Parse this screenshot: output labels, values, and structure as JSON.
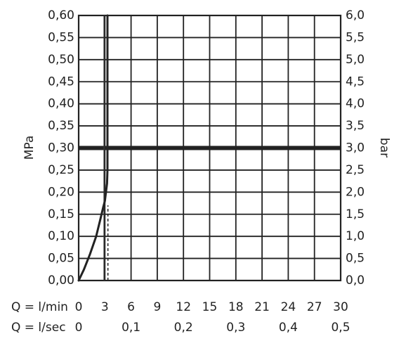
{
  "chart_data": {
    "type": "line",
    "ylabel_left": "MPa",
    "ylabel_right": "bar",
    "xlabel_lmin": "Q = l/min",
    "xlabel_lsec": "Q = l/sec",
    "x_ticks_lmin": [
      "0",
      "3",
      "6",
      "9",
      "12",
      "15",
      "18",
      "21",
      "24",
      "27",
      "30"
    ],
    "x_ticks_lsec": [
      {
        "value": 0,
        "label": "0"
      },
      {
        "value": 6,
        "label": "0,1"
      },
      {
        "value": 12,
        "label": "0,2"
      },
      {
        "value": 18,
        "label": "0,3"
      },
      {
        "value": 24,
        "label": "0,4"
      },
      {
        "value": 30,
        "label": "0,5"
      }
    ],
    "y_ticks_left": [
      "0,00",
      "0,05",
      "0,10",
      "0,15",
      "0,20",
      "0,25",
      "0,30",
      "0,35",
      "0,40",
      "0,45",
      "0,50",
      "0,55",
      "0,60"
    ],
    "y_ticks_right": [
      "0,0",
      "0,5",
      "1,0",
      "1,5",
      "2,0",
      "2,5",
      "3,0",
      "3,5",
      "4,0",
      "4,5",
      "5,0",
      "5,5",
      "6,0"
    ],
    "xlim": [
      0,
      30
    ],
    "ylim": [
      0,
      0.6
    ],
    "grid": true,
    "reference_line_y": 0.3,
    "curve": {
      "x": [
        0,
        0.6,
        1.3,
        2.0,
        2.5,
        2.8,
        3.0,
        3.25,
        3.3,
        3.3,
        3.3
      ],
      "y": [
        0.0,
        0.025,
        0.06,
        0.1,
        0.14,
        0.165,
        0.18,
        0.22,
        0.25,
        0.4,
        0.6
      ]
    },
    "thin_vertical_x": 2.9,
    "dashed_vertical": {
      "x": 3.35,
      "y_from": 0.0,
      "y_to": 0.17
    }
  }
}
